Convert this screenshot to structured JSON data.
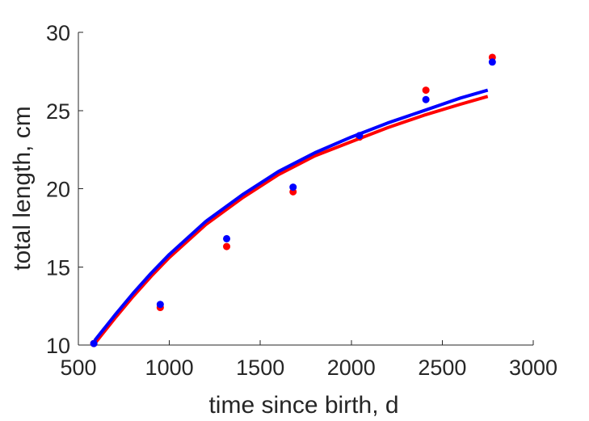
{
  "chart_data": {
    "type": "scatter",
    "xlabel": "time since birth, d",
    "ylabel": "total length, cm",
    "xlim": [
      500,
      3000
    ],
    "ylim": [
      10,
      30
    ],
    "xticks": [
      500,
      1000,
      1500,
      2000,
      2500,
      3000
    ],
    "yticks": [
      10,
      15,
      20,
      25,
      30
    ],
    "xtick_labels": [
      "500",
      "1000",
      "1500",
      "2000",
      "2500",
      "3000"
    ],
    "ytick_labels": [
      "10",
      "15",
      "20",
      "25",
      "30"
    ],
    "grid": false,
    "series": [
      {
        "color": "#ff0000",
        "points": {
          "x": [
            585,
            950,
            1315,
            1680,
            2045,
            2410,
            2775
          ],
          "y": [
            10.1,
            12.4,
            16.3,
            19.8,
            23.3,
            26.3,
            28.4
          ]
        },
        "curve": {
          "x": [
            590,
            700,
            800,
            900,
            1000,
            1200,
            1400,
            1600,
            1800,
            2000,
            2200,
            2400,
            2600,
            2750
          ],
          "y": [
            10.1,
            11.7,
            13.1,
            14.4,
            15.6,
            17.7,
            19.4,
            20.9,
            22.1,
            23.0,
            23.9,
            24.7,
            25.4,
            25.9
          ]
        }
      },
      {
        "color": "#0000ff",
        "points": {
          "x": [
            585,
            950,
            1315,
            1680,
            2045,
            2410,
            2775
          ],
          "y": [
            10.1,
            12.6,
            16.8,
            20.1,
            23.4,
            25.7,
            28.1
          ]
        },
        "curve": {
          "x": [
            590,
            700,
            800,
            900,
            1000,
            1200,
            1400,
            1600,
            1800,
            2000,
            2200,
            2400,
            2600,
            2750
          ],
          "y": [
            10.3,
            11.9,
            13.3,
            14.6,
            15.8,
            17.9,
            19.6,
            21.1,
            22.3,
            23.3,
            24.2,
            25.0,
            25.8,
            26.3
          ]
        }
      }
    ]
  }
}
